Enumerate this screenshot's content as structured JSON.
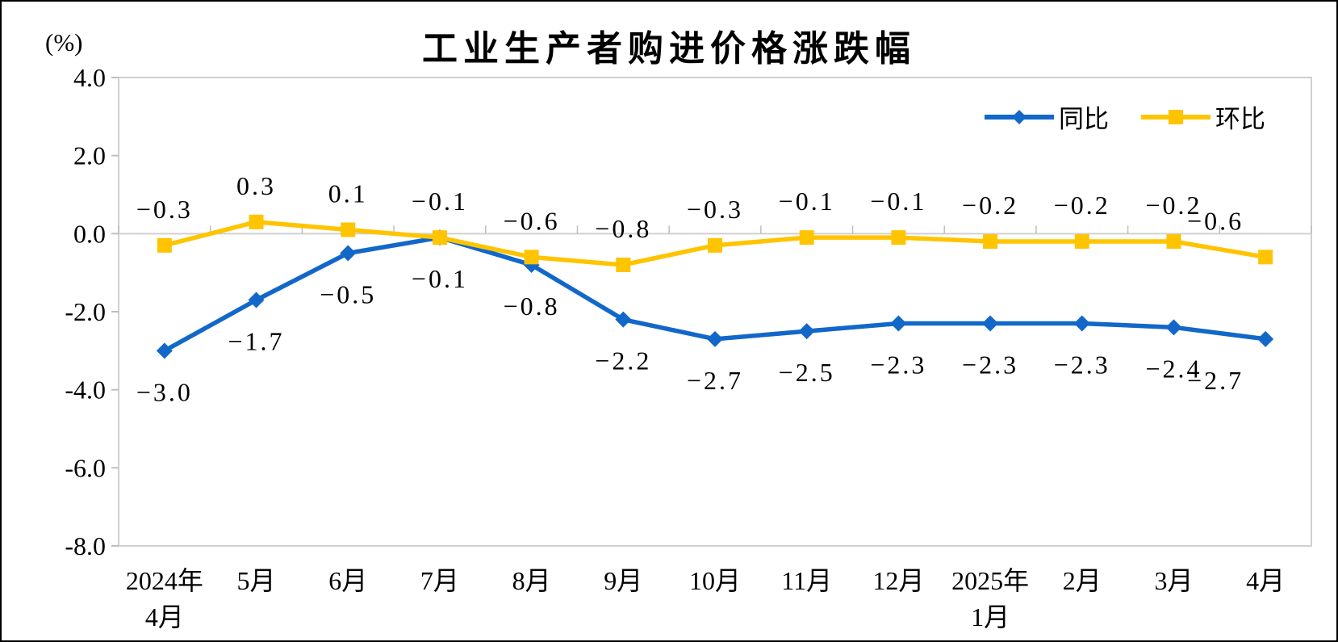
{
  "chart_data": {
    "type": "line",
    "title": "工业生产者购进价格涨跌幅",
    "unit": "(%)",
    "categories": [
      [
        "2024年",
        "4月"
      ],
      [
        "5月"
      ],
      [
        "6月"
      ],
      [
        "7月"
      ],
      [
        "8月"
      ],
      [
        "9月"
      ],
      [
        "10月"
      ],
      [
        "11月"
      ],
      [
        "12月"
      ],
      [
        "2025年",
        "1月"
      ],
      [
        "2月"
      ],
      [
        "3月"
      ],
      [
        "4月"
      ]
    ],
    "series": [
      {
        "name": "同比",
        "color": "#1268C9",
        "marker": "diamond",
        "label_position": "below",
        "values": [
          -3.0,
          -1.7,
          -0.5,
          -0.1,
          -0.8,
          -2.2,
          -2.7,
          -2.5,
          -2.3,
          -2.3,
          -2.3,
          -2.4,
          -2.7
        ]
      },
      {
        "name": "环比",
        "color": "#FFC400",
        "marker": "square",
        "label_position": "above",
        "values": [
          -0.3,
          0.3,
          0.1,
          -0.1,
          -0.6,
          -0.8,
          -0.3,
          -0.1,
          -0.1,
          -0.2,
          -0.2,
          -0.2,
          -0.6
        ]
      }
    ],
    "ylim": [
      -8.0,
      4.0
    ],
    "ytick_step": 2.0,
    "yticks": [
      "4.0",
      "2.0",
      "0.0",
      "-2.0",
      "-4.0",
      "-6.0",
      "-8.0"
    ],
    "grid": false,
    "axis_color": "#D0D0D0",
    "tick_color": "#BFBFBF",
    "legend_position": "top-right"
  }
}
